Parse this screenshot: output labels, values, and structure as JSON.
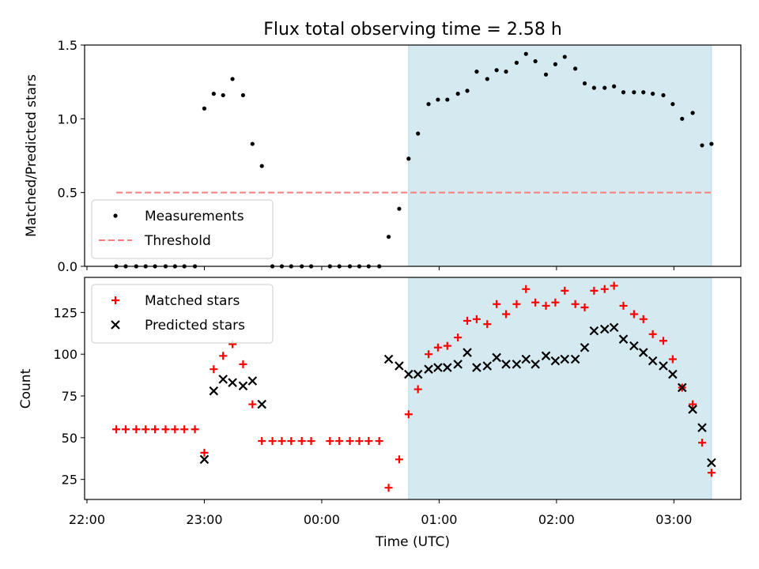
{
  "chart_data": {
    "title": "Flux total observing time = 2.58 h",
    "xlabel": "Time (UTC)",
    "x_ticks": [
      "22:00",
      "23:00",
      "00:00",
      "01:00",
      "02:00",
      "03:00"
    ],
    "x_tick_hours": [
      0,
      1,
      2,
      3,
      4,
      5
    ],
    "x_range_hours": [
      -0.02,
      5.57
    ],
    "x_reference": "22:00 UTC",
    "shaded_interval_hours": [
      2.74,
      5.32
    ],
    "shade_color": "#d4eaf0",
    "panels": [
      {
        "type": "scatter",
        "ylabel": "Matched/Predicted stars",
        "ylim": [
          0,
          1.5
        ],
        "y_ticks": [
          "0.0",
          "0.5",
          "1.0",
          "1.5"
        ],
        "y_tick_values": [
          0,
          0.5,
          1.0,
          1.5
        ],
        "legend": "lower-left",
        "series": [
          {
            "name": "Measurements",
            "marker": "dot",
            "color": "#000000",
            "x": [
              0.25,
              0.33,
              0.42,
              0.5,
              0.58,
              0.67,
              0.75,
              0.83,
              0.92,
              1.0,
              1.08,
              1.16,
              1.24,
              1.33,
              1.41,
              1.49,
              1.58,
              1.66,
              1.74,
              1.83,
              1.91,
              2.07,
              2.15,
              2.24,
              2.32,
              2.4,
              2.49,
              2.57,
              2.66,
              2.74,
              2.82,
              2.91,
              2.99,
              3.07,
              3.16,
              3.24,
              3.32,
              3.41,
              3.49,
              3.57,
              3.66,
              3.74,
              3.82,
              3.91,
              3.99,
              4.07,
              4.16,
              4.24,
              4.32,
              4.41,
              4.49,
              4.57,
              4.66,
              4.74,
              4.82,
              4.91,
              4.99,
              5.07,
              5.16,
              5.24,
              5.32
            ],
            "y": [
              0,
              0,
              0,
              0,
              0,
              0,
              0,
              0,
              0,
              1.07,
              1.17,
              1.16,
              1.27,
              1.16,
              0.83,
              0.68,
              0,
              0,
              0,
              0,
              0,
              0,
              0,
              0,
              0,
              0,
              0,
              0.2,
              0.39,
              0.73,
              0.9,
              1.1,
              1.13,
              1.13,
              1.17,
              1.19,
              1.32,
              1.27,
              1.33,
              1.32,
              1.38,
              1.44,
              1.39,
              1.3,
              1.37,
              1.42,
              1.34,
              1.24,
              1.21,
              1.21,
              1.22,
              1.18,
              1.18,
              1.18,
              1.17,
              1.16,
              1.1,
              1.0,
              1.04,
              0.82,
              0.83
            ]
          },
          {
            "name": "Threshold",
            "type": "line",
            "style": "dashed",
            "color": "#ff7c7c",
            "x": [
              0.25,
              5.32
            ],
            "y": [
              0.5,
              0.5
            ]
          }
        ]
      },
      {
        "type": "scatter",
        "ylabel": "Count",
        "ylim": [
          13,
          146
        ],
        "y_ticks": [
          "25",
          "50",
          "75",
          "100",
          "125"
        ],
        "y_tick_values": [
          25,
          50,
          75,
          100,
          125
        ],
        "legend": "upper-left",
        "series": [
          {
            "name": "Matched stars",
            "marker": "plus",
            "color": "#ff0000",
            "x": [
              0.25,
              0.33,
              0.42,
              0.5,
              0.58,
              0.67,
              0.75,
              0.83,
              0.92,
              1.0,
              1.08,
              1.16,
              1.24,
              1.33,
              1.41,
              1.49,
              1.58,
              1.66,
              1.74,
              1.83,
              1.91,
              2.07,
              2.15,
              2.24,
              2.32,
              2.4,
              2.49,
              2.57,
              2.66,
              2.74,
              2.82,
              2.91,
              2.99,
              3.07,
              3.16,
              3.24,
              3.32,
              3.41,
              3.49,
              3.57,
              3.66,
              3.74,
              3.82,
              3.91,
              3.99,
              4.07,
              4.16,
              4.24,
              4.32,
              4.41,
              4.49,
              4.57,
              4.66,
              4.74,
              4.82,
              4.91,
              4.99,
              5.07,
              5.16,
              5.24,
              5.32
            ],
            "y": [
              55,
              55,
              55,
              55,
              55,
              55,
              55,
              55,
              55,
              41,
              91,
              99,
              106,
              94,
              70,
              48,
              48,
              48,
              48,
              48,
              48,
              48,
              48,
              48,
              48,
              48,
              48,
              20,
              37,
              64,
              79,
              100,
              104,
              105,
              110,
              120,
              121,
              118,
              130,
              124,
              130,
              139,
              131,
              129,
              131,
              138,
              130,
              128,
              138,
              139,
              141,
              129,
              124,
              121,
              112,
              108,
              97,
              80,
              70,
              47,
              29
            ]
          },
          {
            "name": "Predicted stars",
            "marker": "x",
            "color": "#000000",
            "x": [
              1.0,
              1.08,
              1.16,
              1.24,
              1.33,
              1.41,
              1.49,
              2.57,
              2.66,
              2.74,
              2.82,
              2.91,
              2.99,
              3.07,
              3.16,
              3.24,
              3.32,
              3.41,
              3.49,
              3.57,
              3.66,
              3.74,
              3.82,
              3.91,
              3.99,
              4.07,
              4.16,
              4.24,
              4.32,
              4.41,
              4.49,
              4.57,
              4.66,
              4.74,
              4.82,
              4.91,
              4.99,
              5.07,
              5.16,
              5.24,
              5.32
            ],
            "y": [
              37,
              78,
              85,
              83,
              81,
              84,
              70,
              97,
              93,
              88,
              88,
              91,
              92,
              92,
              94,
              101,
              92,
              93,
              98,
              94,
              94,
              97,
              94,
              99,
              96,
              97,
              97,
              104,
              114,
              115,
              116,
              109,
              105,
              101,
              96,
              93,
              88,
              80,
              67,
              56,
              35
            ]
          }
        ]
      }
    ]
  }
}
